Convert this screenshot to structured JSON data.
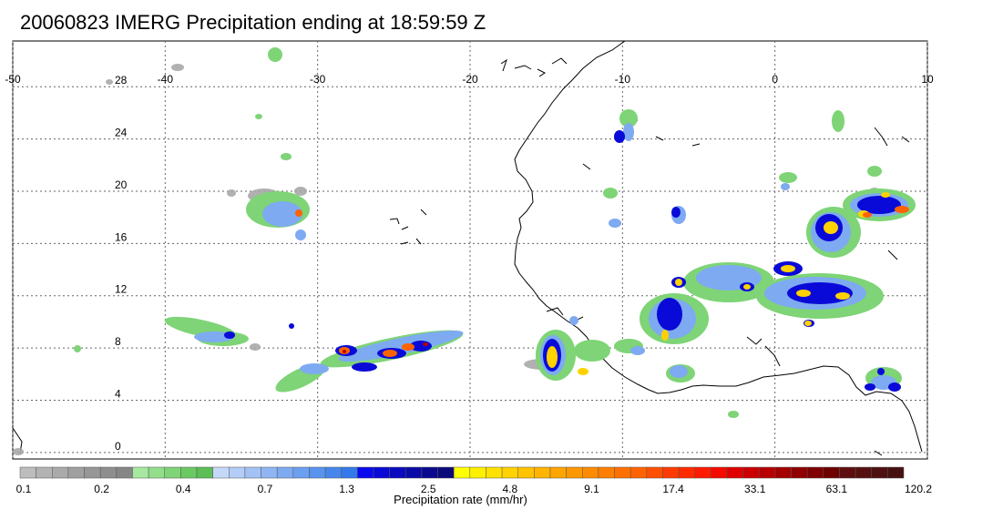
{
  "title": "20060823 IMERG Precipitation ending at 18:59:59 Z",
  "map": {
    "lon_range": [
      -50,
      10
    ],
    "lat_range": [
      -0.5,
      31.5
    ],
    "lon_ticks": [
      "-50",
      "-40",
      "-30",
      "-20",
      "-10",
      "0",
      "10"
    ],
    "lat_ticks": [
      "28",
      "24",
      "20",
      "16",
      "12",
      "8",
      "4",
      "0"
    ]
  },
  "colorbar": {
    "label": "Precipitation rate (mm/hr)",
    "tick_labels": [
      "0.1",
      "0.2",
      "0.4",
      "0.7",
      "1.3",
      "2.5",
      "4.8",
      "9.1",
      "17.4",
      "33.1",
      "63.1",
      "120.2"
    ],
    "colors": [
      "#bdbdbd",
      "#b3b3b3",
      "#aaaaaa",
      "#a0a0a0",
      "#979797",
      "#8e8e8e",
      "#868686",
      "#a6e8a0",
      "#92de8a",
      "#7ed476",
      "#6bc962",
      "#5bbf55",
      "#c6d8f7",
      "#b4cdf6",
      "#a2c2f5",
      "#8fb6f3",
      "#7eaaf1",
      "#6b9ff0",
      "#5893ee",
      "#4686ec",
      "#3379ea",
      "#0a0af0",
      "#0a0ad8",
      "#0a0ac0",
      "#0a0aa8",
      "#0a0a90",
      "#0a0a7a",
      "#ffff00",
      "#fff000",
      "#ffe100",
      "#ffd200",
      "#ffc300",
      "#ffb400",
      "#ffa500",
      "#ff9800",
      "#ff8b00",
      "#ff7e00",
      "#ff7000",
      "#ff6200",
      "#ff4e00",
      "#ff3a00",
      "#ff2a00",
      "#ff1a00",
      "#f50a00",
      "#e00000",
      "#cc0000",
      "#b80000",
      "#a40000",
      "#900000",
      "#7e0000",
      "#6e0000",
      "#5e0e0e",
      "#561010",
      "#4e1010",
      "#461010"
    ]
  }
}
